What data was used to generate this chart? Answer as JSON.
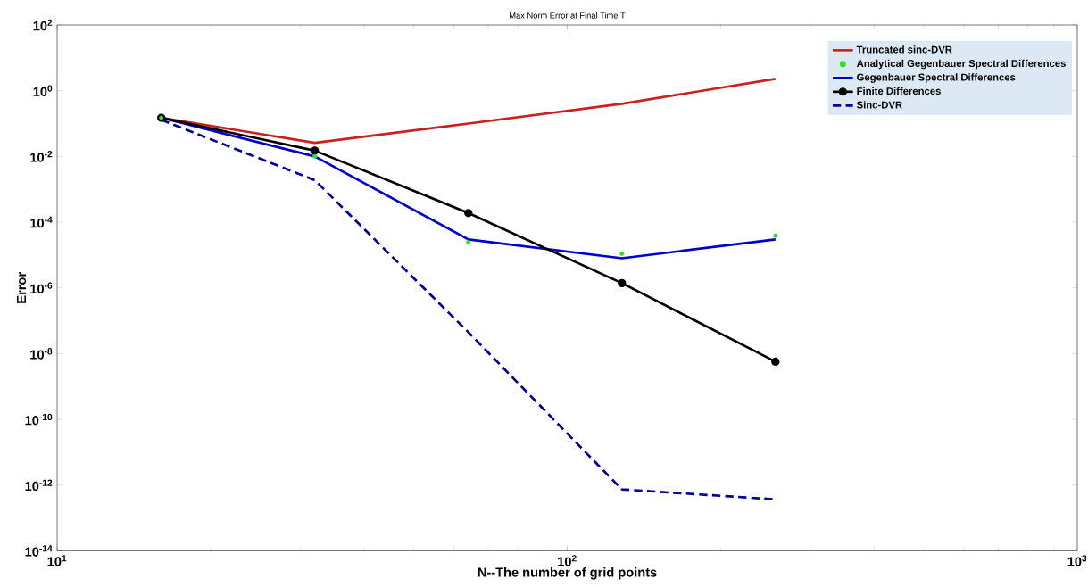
{
  "chart_data": {
    "type": "line",
    "title": "Max Norm Error at Final Time T",
    "xlabel": "N--The number of grid points",
    "ylabel": "Error",
    "log": "xy",
    "legend": "right",
    "grid": false,
    "xlim": [
      10,
      1000
    ],
    "ylim": [
      1e-14,
      100
    ],
    "xticks": [
      {
        "value": 10,
        "label": "10$^{1}$"
      },
      {
        "value": 100,
        "label": "10$^{2}$"
      },
      {
        "value": 1000,
        "label": "10$^{3}$"
      }
    ],
    "yticks": [
      {
        "value": 1e-14,
        "label": "10$^{-14}$"
      },
      {
        "value": 1e-12,
        "label": "10$^{-12}$"
      },
      {
        "value": 1e-10,
        "label": "10$^{-10}$"
      },
      {
        "value": 1e-08,
        "label": "10$^{-8}$"
      },
      {
        "value": 1e-06,
        "label": "10$^{-6}$"
      },
      {
        "value": 0.0001,
        "label": "10$^{-4}$"
      },
      {
        "value": 0.01,
        "label": "10$^{-2}$"
      },
      {
        "value": 1,
        "label": "10$^{0}$"
      },
      {
        "value": 100,
        "label": "10$^{2}$"
      }
    ],
    "x": [
      16,
      32,
      64,
      128,
      256
    ],
    "series": [
      {
        "name": "Truncated sinc-DVR",
        "color": "#cc2020",
        "marker": "none",
        "line_style": "solid",
        "values": [
          0.15,
          0.026,
          0.1,
          0.4,
          2.3
        ]
      },
      {
        "name": "Analytical Gegenbauer Spectral Differences",
        "type": "scatter",
        "color": "#33dd33",
        "marker": "circle",
        "values": [
          0.15,
          0.01,
          2.5e-05,
          1.1e-05,
          3.9e-05
        ]
      },
      {
        "name": "Gegenbauer Spectral Differences",
        "color": "#0000cc",
        "marker": "none",
        "line_style": "solid",
        "values": [
          0.15,
          0.01,
          3e-05,
          8e-06,
          3e-05
        ]
      },
      {
        "name": "Finite Differences",
        "color": "#000000",
        "marker": "circle",
        "line_style": "solid",
        "values": [
          0.15,
          0.015,
          0.00019,
          1.4e-06,
          5.7e-09
        ]
      },
      {
        "name": "Sinc-DVR",
        "color": "#000099",
        "marker": "none",
        "line_style": "dashed",
        "values": [
          0.13,
          0.0019,
          4.5e-08,
          7.4e-13,
          3.7e-13
        ]
      }
    ]
  }
}
